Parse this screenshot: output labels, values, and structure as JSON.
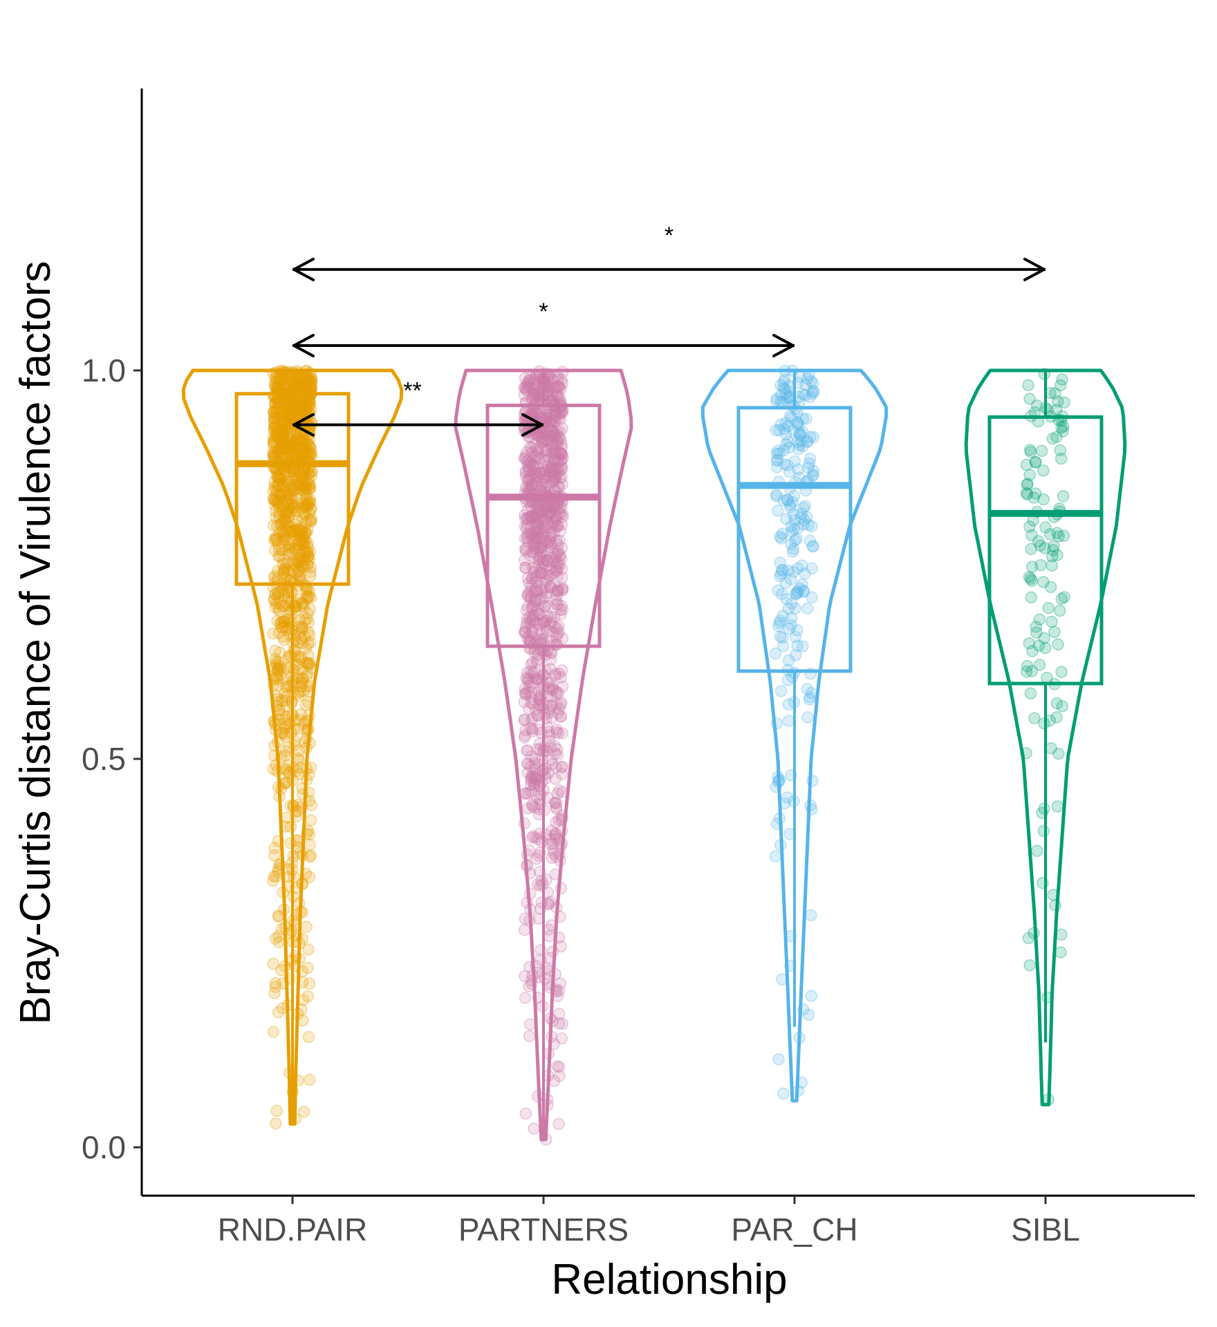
{
  "chart_data": {
    "type": "violin",
    "title": "",
    "xlabel": "Relationship",
    "ylabel": "Bray-Curtis distance of Virulence factors",
    "ylim": [
      -0.06,
      1.38
    ],
    "yticks": [
      0.0,
      0.5,
      1.0
    ],
    "ytick_labels": [
      "0.0",
      "0.5",
      "1.0"
    ],
    "grid": false,
    "legend": "none",
    "categories": [
      "RND.PAIR",
      "PARTNERS",
      "PAR_CH",
      "SIBL"
    ],
    "series": [
      {
        "category": "RND.PAIR",
        "color": "#E69F00",
        "box": {
          "min": 0.03,
          "q1": 0.725,
          "median": 0.88,
          "q3": 0.97,
          "max": 1.0
        },
        "range": [
          0.03,
          1.0
        ],
        "density": [
          [
            0.03,
            0.02
          ],
          [
            0.1,
            0.03
          ],
          [
            0.2,
            0.05
          ],
          [
            0.3,
            0.07
          ],
          [
            0.4,
            0.1
          ],
          [
            0.5,
            0.13
          ],
          [
            0.6,
            0.2
          ],
          [
            0.7,
            0.32
          ],
          [
            0.8,
            0.5
          ],
          [
            0.85,
            0.62
          ],
          [
            0.9,
            0.78
          ],
          [
            0.94,
            0.92
          ],
          [
            0.97,
            1.0
          ],
          [
            0.99,
            0.95
          ],
          [
            1.0,
            0.9
          ]
        ],
        "n_points": 1100
      },
      {
        "category": "PARTNERS",
        "color": "#CC79A7",
        "box": {
          "min": 0.01,
          "q1": 0.645,
          "median": 0.837,
          "q3": 0.955,
          "max": 1.0
        },
        "range": [
          0.01,
          1.0
        ],
        "density": [
          [
            0.01,
            0.02
          ],
          [
            0.1,
            0.05
          ],
          [
            0.2,
            0.08
          ],
          [
            0.3,
            0.12
          ],
          [
            0.4,
            0.18
          ],
          [
            0.5,
            0.25
          ],
          [
            0.6,
            0.35
          ],
          [
            0.7,
            0.47
          ],
          [
            0.8,
            0.6
          ],
          [
            0.88,
            0.72
          ],
          [
            0.93,
            0.8
          ],
          [
            0.97,
            0.76
          ],
          [
            1.0,
            0.7
          ]
        ],
        "n_points": 1000
      },
      {
        "category": "PAR_CH",
        "color": "#56B4E9",
        "box": {
          "min": 0.155,
          "q1": 0.613,
          "median": 0.852,
          "q3": 0.952,
          "max": 1.0
        },
        "range": [
          0.06,
          1.0
        ],
        "density": [
          [
            0.06,
            0.02
          ],
          [
            0.2,
            0.06
          ],
          [
            0.4,
            0.12
          ],
          [
            0.5,
            0.15
          ],
          [
            0.6,
            0.22
          ],
          [
            0.7,
            0.32
          ],
          [
            0.8,
            0.5
          ],
          [
            0.9,
            0.78
          ],
          [
            0.95,
            0.84
          ],
          [
            0.98,
            0.72
          ],
          [
            1.0,
            0.6
          ]
        ],
        "n_points": 220
      },
      {
        "category": "SIBL",
        "color": "#009E73",
        "box": {
          "min": 0.135,
          "q1": 0.597,
          "median": 0.816,
          "q3": 0.94,
          "max": 1.0
        },
        "range": [
          0.055,
          1.0
        ],
        "density": [
          [
            0.055,
            0.03
          ],
          [
            0.1,
            0.04
          ],
          [
            0.2,
            0.06
          ],
          [
            0.3,
            0.1
          ],
          [
            0.4,
            0.15
          ],
          [
            0.5,
            0.2
          ],
          [
            0.6,
            0.33
          ],
          [
            0.7,
            0.5
          ],
          [
            0.8,
            0.64
          ],
          [
            0.9,
            0.72
          ],
          [
            0.95,
            0.7
          ],
          [
            0.98,
            0.6
          ],
          [
            1.0,
            0.5
          ]
        ],
        "n_points": 120
      }
    ],
    "comparisons": [
      {
        "from": "RND.PAIR",
        "to": "PARTNERS",
        "y": 0.93,
        "label": "**"
      },
      {
        "from": "RND.PAIR",
        "to": "PAR_CH",
        "y": 1.032,
        "label": "*"
      },
      {
        "from": "RND.PAIR",
        "to": "SIBL",
        "y": 1.13,
        "label": "*"
      }
    ]
  }
}
